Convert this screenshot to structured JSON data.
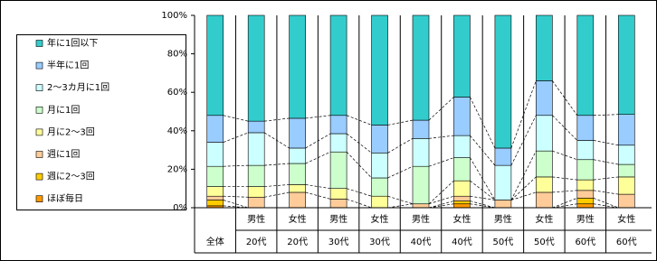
{
  "chart_data": {
    "type": "stacked_bar_100",
    "categories": [
      [
        "全体"
      ],
      [
        "男性",
        "20代"
      ],
      [
        "女性",
        "20代"
      ],
      [
        "男性",
        "30代"
      ],
      [
        "女性",
        "30代"
      ],
      [
        "男性",
        "40代"
      ],
      [
        "女性",
        "40代"
      ],
      [
        "男性",
        "50代"
      ],
      [
        "女性",
        "50代"
      ],
      [
        "男性",
        "60代"
      ],
      [
        "女性",
        "60代"
      ]
    ],
    "series": [
      {
        "name": "ほぼ毎日",
        "color": "#FF9900",
        "values": [
          1,
          0,
          0,
          0,
          0,
          0,
          2,
          0,
          0,
          2,
          0
        ]
      },
      {
        "name": "週に2～3回",
        "color": "#FFCC00",
        "values": [
          3,
          0,
          0,
          0,
          0,
          0,
          1.5,
          0,
          0,
          3,
          0
        ]
      },
      {
        "name": "週に1回",
        "color": "#FFCC99",
        "values": [
          2,
          5.5,
          8,
          4.5,
          0,
          2,
          2.5,
          4,
          8,
          4,
          7
        ]
      },
      {
        "name": "月に2～3回",
        "color": "#FFFF99",
        "values": [
          5,
          5.5,
          4,
          5.5,
          6,
          0,
          8,
          0,
          8,
          5.5,
          9
        ]
      },
      {
        "name": "月に1回",
        "color": "#CCFFCC",
        "values": [
          10.5,
          11,
          11,
          19,
          9.5,
          19.5,
          12,
          0,
          13.5,
          10.5,
          6.5
        ]
      },
      {
        "name": "2～3カ月に1回",
        "color": "#CCFFFF",
        "values": [
          12.5,
          17,
          8,
          9.5,
          13,
          14.5,
          11.5,
          18,
          18.5,
          10,
          10
        ]
      },
      {
        "name": "半年に1回",
        "color": "#99CCFF",
        "values": [
          14,
          6,
          15.5,
          9.5,
          14.5,
          9.5,
          20,
          9,
          18,
          13,
          16
        ]
      },
      {
        "name": "年に1回以下",
        "color": "#33CCCC",
        "values": [
          52,
          55,
          53.5,
          52,
          57,
          54.5,
          42.5,
          69,
          34,
          52,
          51.5
        ]
      }
    ],
    "ylim": [
      0,
      100
    ],
    "yticks": [
      {
        "value": 0,
        "label": "0%"
      },
      {
        "value": 20,
        "label": "20%"
      },
      {
        "value": 40,
        "label": "40%"
      },
      {
        "value": 60,
        "label": "60%"
      },
      {
        "value": 80,
        "label": "80%"
      },
      {
        "value": 100,
        "label": "100%"
      }
    ],
    "legend": "left"
  }
}
